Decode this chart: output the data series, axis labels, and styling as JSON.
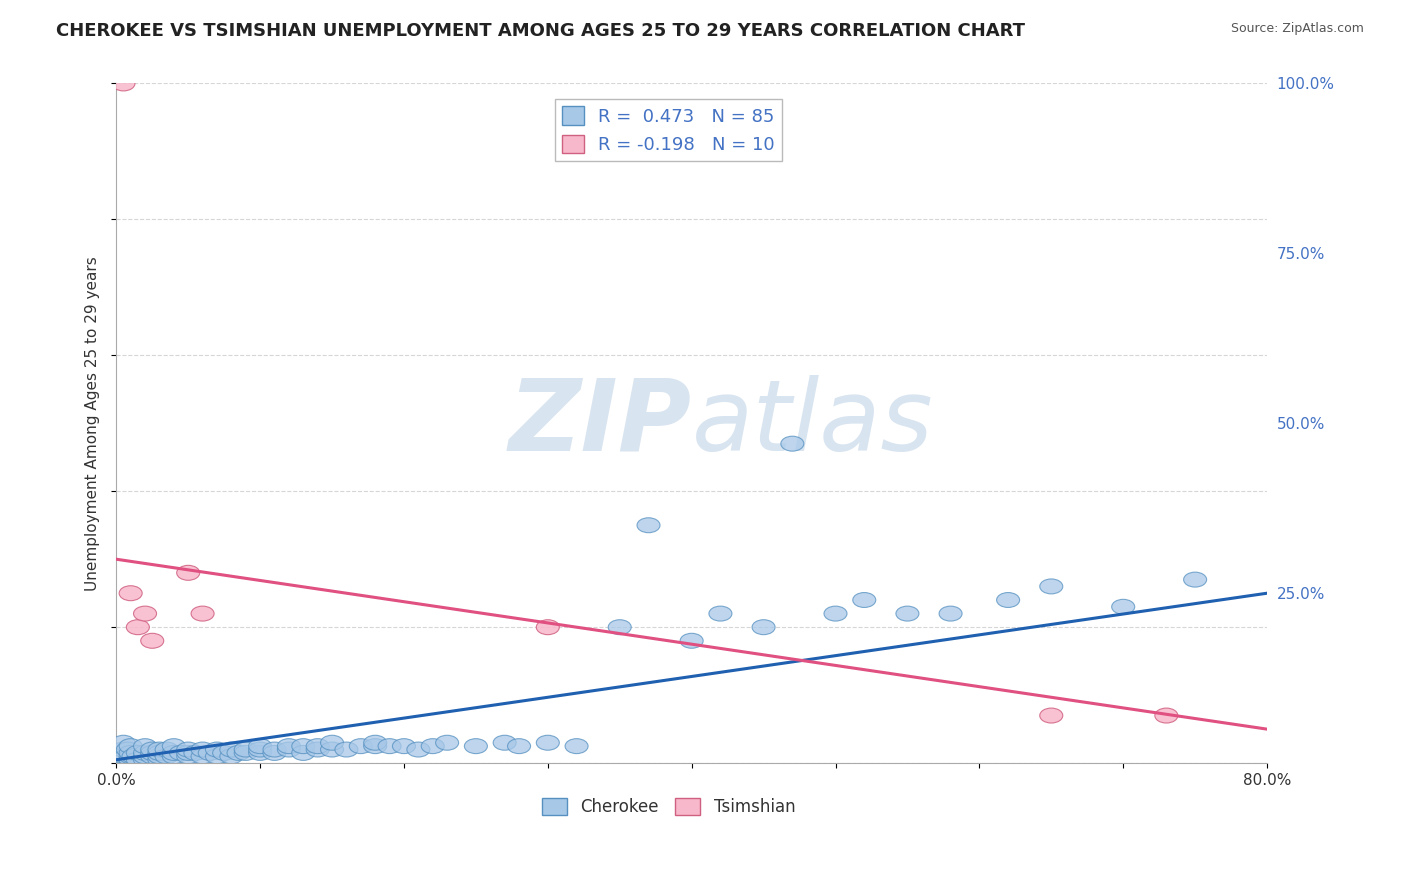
{
  "title": "CHEROKEE VS TSIMSHIAN UNEMPLOYMENT AMONG AGES 25 TO 29 YEARS CORRELATION CHART",
  "source": "Source: ZipAtlas.com",
  "ylabel": "Unemployment Among Ages 25 to 29 years",
  "xlim": [
    0.0,
    0.8
  ],
  "ylim": [
    0.0,
    1.0
  ],
  "xticks": [
    0.0,
    0.1,
    0.2,
    0.3,
    0.4,
    0.5,
    0.6,
    0.7,
    0.8
  ],
  "xticklabels": [
    "0.0%",
    "",
    "",
    "",
    "",
    "",
    "",
    "",
    "80.0%"
  ],
  "yticks_right": [
    0.0,
    0.25,
    0.5,
    0.75,
    1.0
  ],
  "yticklabels_right": [
    "",
    "25.0%",
    "50.0%",
    "75.0%",
    "100.0%"
  ],
  "cherokee_R": 0.473,
  "cherokee_N": 85,
  "tsimshian_R": -0.198,
  "tsimshian_N": 10,
  "cherokee_color": "#a8c8e8",
  "cherokee_edge_color": "#5590c0",
  "tsimshian_color": "#f8b8cc",
  "tsimshian_edge_color": "#d06080",
  "cherokee_line_color": "#2060b0",
  "tsimshian_line_color": "#e05080",
  "background_color": "#ffffff",
  "grid_color": "#cccccc",
  "watermark_color": "#d8e4f0",
  "title_fontsize": 13,
  "axis_label_fontsize": 11,
  "cherokee_x": [
    0.005,
    0.005,
    0.005,
    0.007,
    0.008,
    0.01,
    0.01,
    0.01,
    0.01,
    0.012,
    0.015,
    0.015,
    0.02,
    0.02,
    0.02,
    0.02,
    0.025,
    0.025,
    0.025,
    0.03,
    0.03,
    0.03,
    0.03,
    0.035,
    0.035,
    0.04,
    0.04,
    0.04,
    0.045,
    0.05,
    0.05,
    0.05,
    0.055,
    0.06,
    0.06,
    0.065,
    0.07,
    0.07,
    0.075,
    0.08,
    0.08,
    0.085,
    0.09,
    0.09,
    0.1,
    0.1,
    0.1,
    0.11,
    0.11,
    0.12,
    0.12,
    0.13,
    0.13,
    0.14,
    0.14,
    0.15,
    0.15,
    0.16,
    0.17,
    0.18,
    0.18,
    0.19,
    0.2,
    0.21,
    0.22,
    0.23,
    0.25,
    0.27,
    0.28,
    0.3,
    0.32,
    0.35,
    0.37,
    0.4,
    0.42,
    0.45,
    0.47,
    0.5,
    0.52,
    0.55,
    0.58,
    0.62,
    0.65,
    0.7,
    0.75
  ],
  "cherokee_y": [
    0.01,
    0.02,
    0.03,
    0.01,
    0.02,
    0.005,
    0.01,
    0.015,
    0.025,
    0.01,
    0.005,
    0.015,
    0.005,
    0.01,
    0.015,
    0.025,
    0.01,
    0.015,
    0.02,
    0.005,
    0.01,
    0.015,
    0.02,
    0.01,
    0.02,
    0.01,
    0.015,
    0.025,
    0.015,
    0.01,
    0.015,
    0.02,
    0.015,
    0.01,
    0.02,
    0.015,
    0.01,
    0.02,
    0.015,
    0.01,
    0.02,
    0.015,
    0.015,
    0.02,
    0.015,
    0.02,
    0.025,
    0.015,
    0.02,
    0.02,
    0.025,
    0.015,
    0.025,
    0.02,
    0.025,
    0.02,
    0.03,
    0.02,
    0.025,
    0.025,
    0.03,
    0.025,
    0.025,
    0.02,
    0.025,
    0.03,
    0.025,
    0.03,
    0.025,
    0.03,
    0.025,
    0.2,
    0.35,
    0.18,
    0.22,
    0.2,
    0.47,
    0.22,
    0.24,
    0.22,
    0.22,
    0.24,
    0.26,
    0.23,
    0.27
  ],
  "tsimshian_x": [
    0.005,
    0.01,
    0.015,
    0.02,
    0.025,
    0.05,
    0.06,
    0.3,
    0.65,
    0.73
  ],
  "tsimshian_y": [
    1.0,
    0.25,
    0.2,
    0.22,
    0.18,
    0.28,
    0.22,
    0.2,
    0.07,
    0.07
  ],
  "cherokee_line_x": [
    0.0,
    0.8
  ],
  "cherokee_line_y": [
    0.005,
    0.25
  ],
  "tsimshian_line_x": [
    0.0,
    0.8
  ],
  "tsimshian_line_y": [
    0.3,
    0.05
  ]
}
